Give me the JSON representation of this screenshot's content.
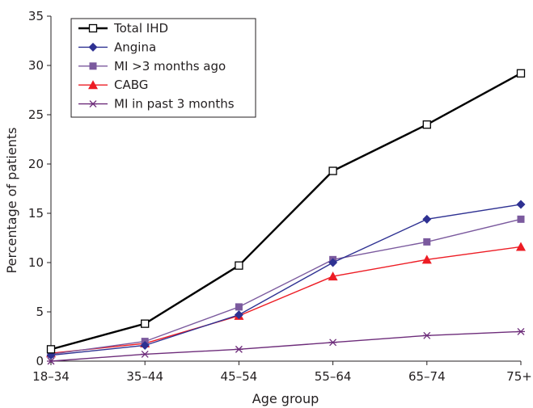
{
  "chart_data": {
    "type": "line",
    "xlabel": "Age group",
    "ylabel": "Percentage of patients",
    "categories": [
      "18–34",
      "35–44",
      "45–54",
      "55–64",
      "65–74",
      "75+"
    ],
    "ylim": [
      0,
      35
    ],
    "yticks": [
      0,
      5,
      10,
      15,
      20,
      25,
      30,
      35
    ],
    "grid": false,
    "legend_position": "top-left",
    "series": [
      {
        "name": "Total IHD",
        "color": "#000000",
        "marker": "square-open",
        "values": [
          1.2,
          3.8,
          9.7,
          19.3,
          24.0,
          29.2
        ]
      },
      {
        "name": "Angina",
        "color": "#2e3192",
        "marker": "diamond",
        "values": [
          0.6,
          1.6,
          4.7,
          10.0,
          14.4,
          15.9
        ]
      },
      {
        "name": "MI >3 months ago",
        "color": "#7b5a9e",
        "marker": "square",
        "values": [
          0.7,
          2.0,
          5.5,
          10.3,
          12.1,
          14.4
        ]
      },
      {
        "name": "CABG",
        "color": "#ed1c24",
        "marker": "triangle",
        "values": [
          0.8,
          1.8,
          4.6,
          8.6,
          10.3,
          11.6
        ]
      },
      {
        "name": "MI in past 3 months",
        "color": "#6d2c7a",
        "marker": "asterisk",
        "values": [
          0.0,
          0.7,
          1.2,
          1.9,
          2.6,
          3.0
        ]
      }
    ]
  }
}
